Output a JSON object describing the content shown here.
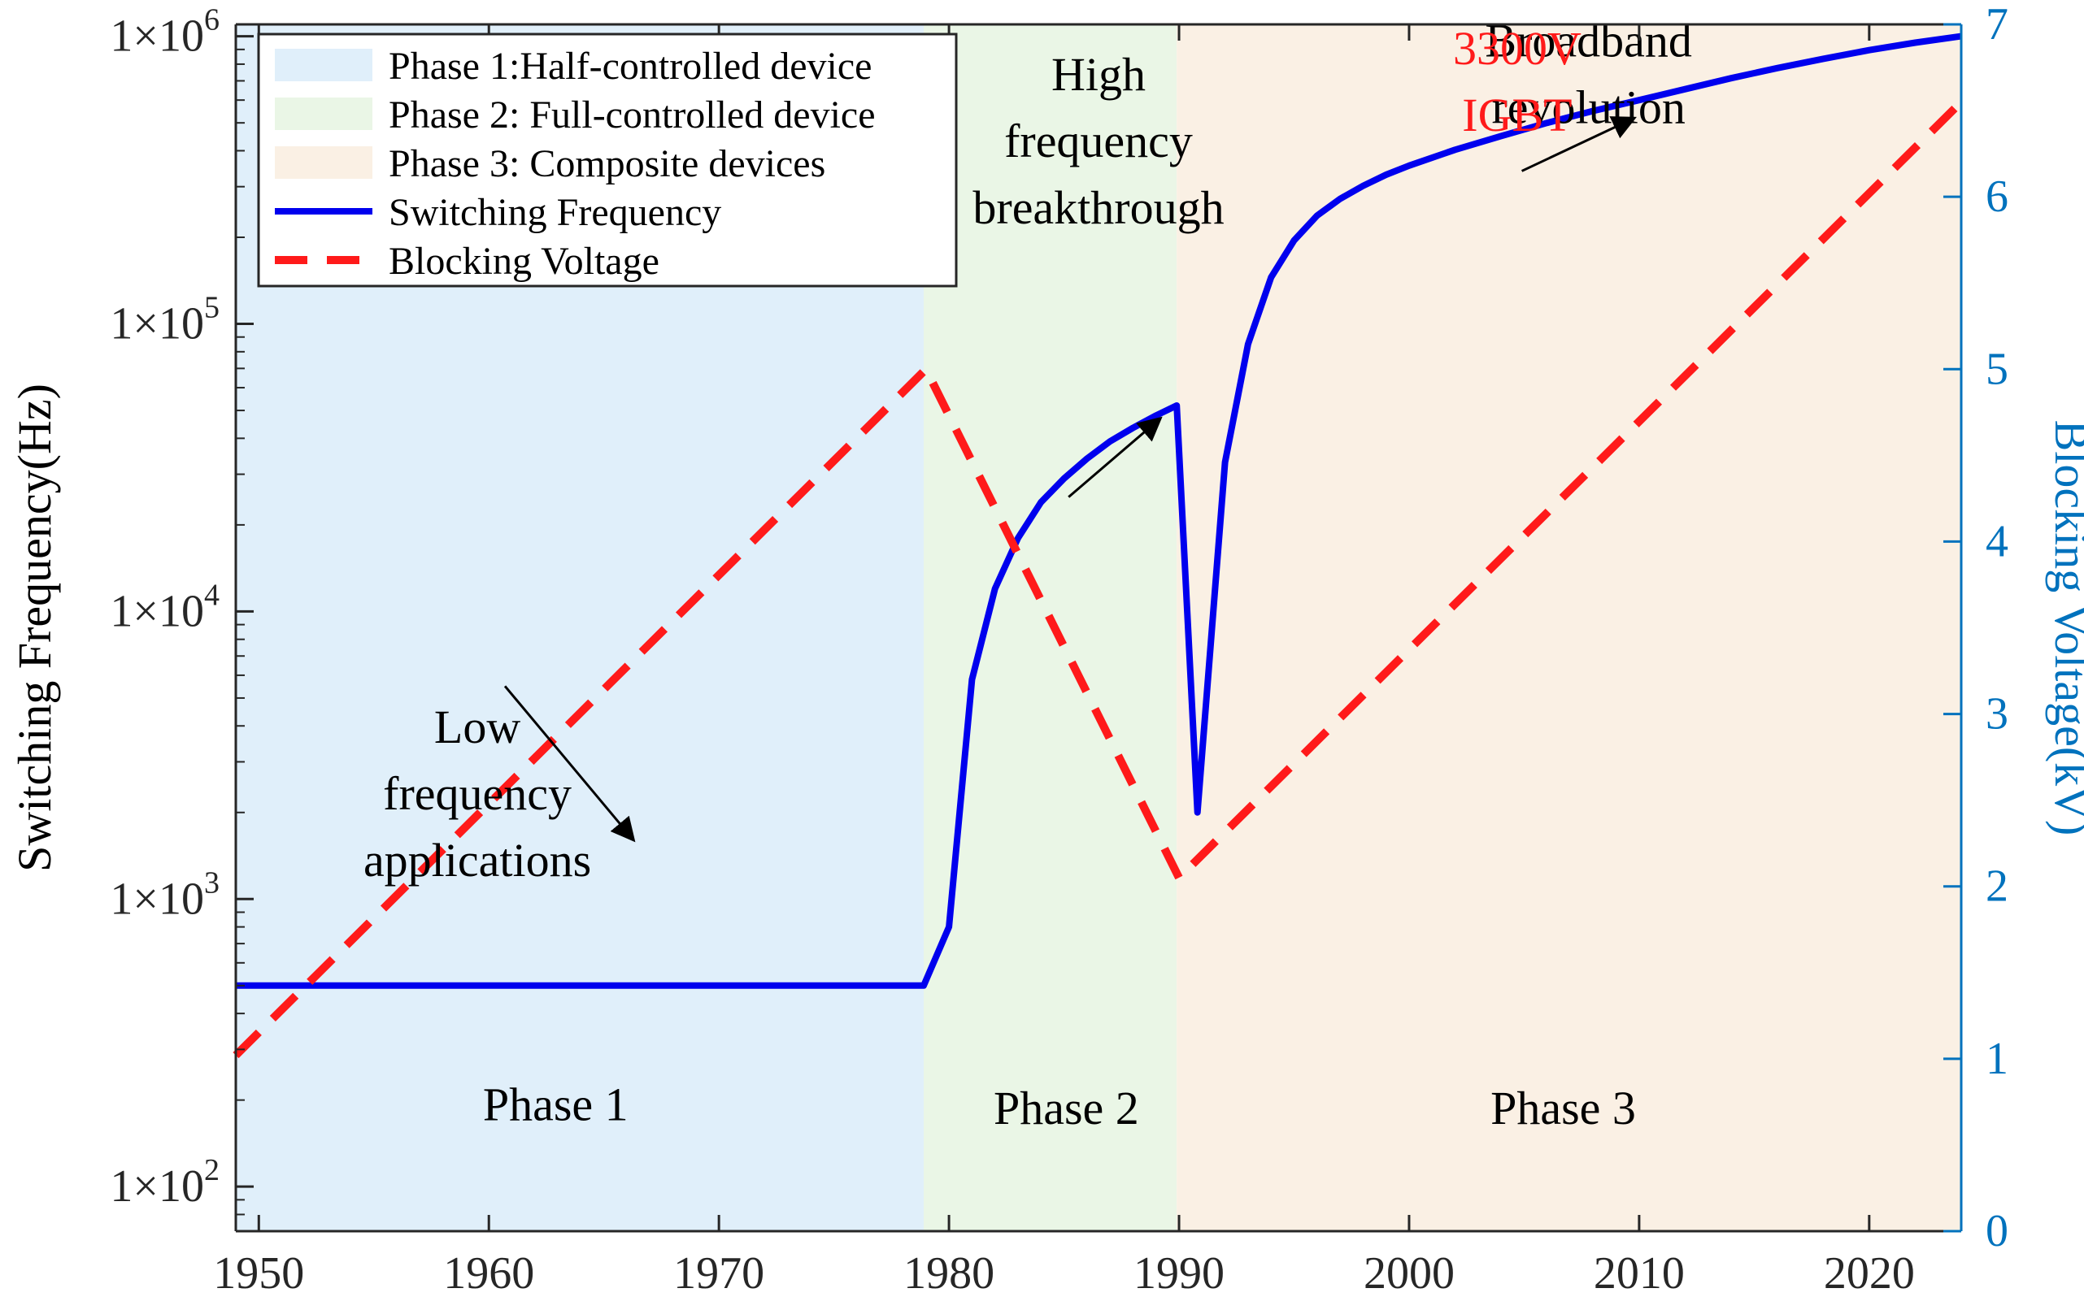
{
  "chart_data": {
    "type": "line",
    "ylabel_left": "Switching Frequency(Hz)",
    "ylabel_right": "Blocking Voltage(kV)",
    "xlim": [
      1949,
      2024
    ],
    "ylim_left": [
      70,
      1100000
    ],
    "ylim_right": [
      0,
      7
    ],
    "yscale_left": "log",
    "grid": false,
    "legend_position": "top-left",
    "x_ticks": [
      1950,
      1960,
      1970,
      1980,
      1990,
      2000,
      2010,
      2020
    ],
    "y_ticks_left": [
      {
        "value": 100,
        "mantissa": "1×10",
        "exp": "2"
      },
      {
        "value": 1000,
        "mantissa": "1×10",
        "exp": "3"
      },
      {
        "value": 10000,
        "mantissa": "1×10",
        "exp": "4"
      },
      {
        "value": 100000,
        "mantissa": "1×10",
        "exp": "5"
      },
      {
        "value": 1000000,
        "mantissa": "1×10",
        "exp": "6"
      }
    ],
    "y_ticks_right": [
      0,
      1,
      2,
      3,
      4,
      5,
      6,
      7
    ],
    "phases": [
      {
        "start": 1949,
        "end": 1978.9,
        "color": "#e0effa",
        "legend": "Phase 1:Half-controlled device",
        "label": "Phase 1",
        "label_x": 1962.9,
        "label_y": 170
      },
      {
        "start": 1978.9,
        "end": 1989.9,
        "color": "#eaf6e6",
        "legend": "Phase 2: Full-controlled device",
        "label": "Phase 2",
        "label_x": 1985.1,
        "label_y": 165
      },
      {
        "start": 1989.9,
        "end": 2024,
        "color": "#faf0e4",
        "legend": "Phase 3: Composite devices",
        "label": "Phase 3",
        "label_x": 2006.7,
        "label_y": 165
      }
    ],
    "series": [
      {
        "name": "Switching Frequency",
        "axis": "left",
        "color": "#0000ee",
        "style": "solid",
        "x": [
          1949,
          1978.9,
          1980,
          1981,
          1982,
          1983,
          1984,
          1985,
          1986,
          1987,
          1988,
          1989,
          1989.9,
          1990.8,
          1992,
          1993,
          1994,
          1995,
          1996,
          1997,
          1998,
          1999,
          2000,
          2002,
          2004,
          2006,
          2008,
          2010,
          2012,
          2014,
          2016,
          2018,
          2020,
          2022,
          2024
        ],
        "y": [
          500,
          500,
          800,
          5800,
          12000,
          18000,
          24000,
          29000,
          34000,
          39000,
          43500,
          48000,
          52000,
          2000,
          33000,
          85000,
          145000,
          195000,
          238000,
          272000,
          302000,
          330000,
          355000,
          403000,
          450000,
          500000,
          550000,
          600000,
          655000,
          715000,
          775000,
          835000,
          895000,
          950000,
          1000000
        ]
      },
      {
        "name": "Blocking Voltage",
        "axis": "right",
        "color": "#ff1a1a",
        "style": "dashed",
        "x": [
          1949,
          1979,
          1990,
          2024
        ],
        "y": [
          1.02,
          5.0,
          2.05,
          6.55
        ]
      }
    ],
    "annotations": [
      {
        "lines": [
          "Low",
          "frequency",
          "applications"
        ],
        "x": 1959.5,
        "y": 3500,
        "line_step": 2.25,
        "color": "#000000"
      },
      {
        "lines": [
          "High",
          "frequency",
          "breakthrough"
        ],
        "x": 1986.5,
        "y": 650000,
        "line_step": 2.25,
        "color": "#000000"
      },
      {
        "lines": [
          "Broadband",
          "revolution"
        ],
        "x": 2007.8,
        "y": 850000,
        "line_step": 2.2,
        "color": "#000000"
      },
      {
        "lines": [
          "3300V",
          "IGBT"
        ],
        "x": 2004.7,
        "y": 800000,
        "line_step": 2.4,
        "color": "#ff1a1a"
      }
    ],
    "arrows": [
      {
        "x1": 1960.7,
        "y1": 5500,
        "x2": 1966.3,
        "y2": 1600
      },
      {
        "x1": 1985.2,
        "y1": 25000,
        "x2": 1989.2,
        "y2": 47000
      },
      {
        "x1": 2004.9,
        "y1": 340000,
        "x2": 2009.8,
        "y2": 520000
      }
    ]
  }
}
